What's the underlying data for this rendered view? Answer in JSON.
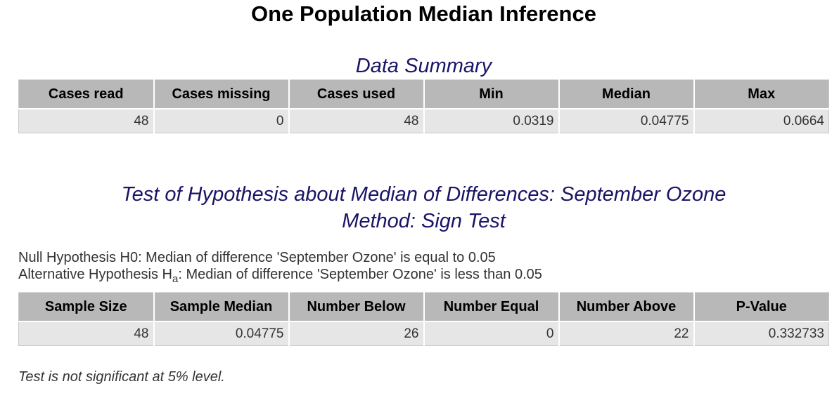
{
  "title": "One Population Median Inference",
  "summary": {
    "title": "Data Summary",
    "headers": [
      "Cases read",
      "Cases missing",
      "Cases used",
      "Min",
      "Median",
      "Max"
    ],
    "row": [
      "48",
      "0",
      "48",
      "0.0319",
      "0.04775",
      "0.0664"
    ]
  },
  "test": {
    "title_line1": "Test of Hypothesis about Median of Differences: September Ozone",
    "title_line2": "Method: Sign Test",
    "null_hypothesis": "Null Hypothesis H0: Median of difference 'September Ozone' is equal to 0.05",
    "alt_prefix": "Alternative Hypothesis H",
    "alt_sub": "a",
    "alt_suffix": ": Median of difference 'September Ozone' is less than 0.05",
    "headers": [
      "Sample Size",
      "Sample Median",
      "Number Below",
      "Number Equal",
      "Number Above",
      "P-Value"
    ],
    "row": [
      "48",
      "0.04775",
      "26",
      "0",
      "22",
      "0.332733"
    ],
    "conclusion": "Test is not significant at 5% level."
  }
}
